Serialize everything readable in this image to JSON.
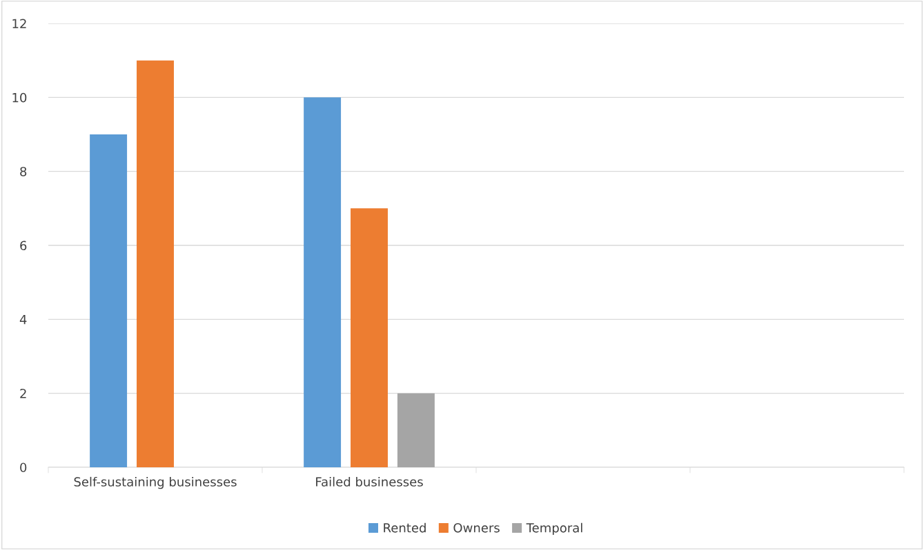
{
  "chart_data": {
    "type": "bar",
    "categories": [
      "Self-sustaining businesses",
      "Failed businesses",
      null,
      null
    ],
    "series": [
      {
        "name": "Rented",
        "color": "#5b9bd5",
        "values": [
          9,
          10,
          null,
          null
        ]
      },
      {
        "name": "Owners",
        "color": "#ed7d31",
        "values": [
          11,
          7,
          null,
          null
        ]
      },
      {
        "name": "Temporal",
        "color": "#a5a5a5",
        "values": [
          null,
          2,
          null,
          null
        ]
      }
    ],
    "ylim": [
      0,
      12
    ],
    "yticks": [
      0,
      2,
      4,
      6,
      8,
      10,
      12
    ],
    "grid": "y",
    "legend": "bottom"
  }
}
